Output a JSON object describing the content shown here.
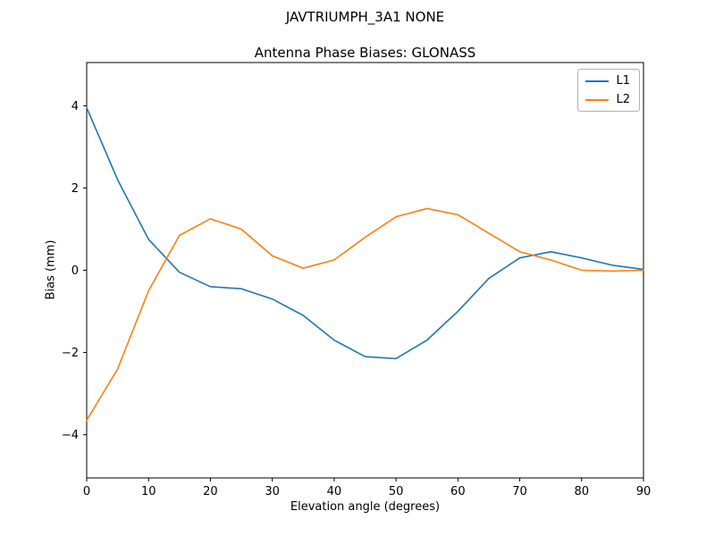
{
  "chart_data": {
    "type": "line",
    "suptitle": "JAVTRIUMPH_3A1  NONE",
    "title": "Antenna Phase Biases: GLONASS",
    "xlabel": "Elevation angle (degrees)",
    "ylabel": "Bias (mm)",
    "xlim": [
      0,
      90
    ],
    "ylim": [
      -5.05,
      5.05
    ],
    "xticks": [
      0,
      10,
      20,
      30,
      40,
      50,
      60,
      70,
      80,
      90
    ],
    "yticks": [
      -4,
      -2,
      0,
      2,
      4
    ],
    "grid": false,
    "legend_position": "upper right",
    "x": [
      0,
      5,
      10,
      15,
      20,
      25,
      30,
      35,
      40,
      45,
      50,
      55,
      60,
      65,
      70,
      75,
      80,
      85,
      90
    ],
    "series": [
      {
        "name": "L1",
        "color": "#1f77b4",
        "values": [
          3.95,
          2.2,
          0.75,
          -0.05,
          -0.4,
          -0.45,
          -0.7,
          -1.1,
          -1.7,
          -2.1,
          -2.15,
          -1.7,
          -1.0,
          -0.2,
          0.3,
          0.45,
          0.3,
          0.12,
          0.02
        ]
      },
      {
        "name": "L2",
        "color": "#ff7f0e",
        "values": [
          -3.65,
          -2.4,
          -0.5,
          0.85,
          1.25,
          1.0,
          0.35,
          0.05,
          0.25,
          0.8,
          1.3,
          1.5,
          1.35,
          0.9,
          0.45,
          0.25,
          0.0,
          -0.02,
          0.0
        ]
      }
    ]
  }
}
